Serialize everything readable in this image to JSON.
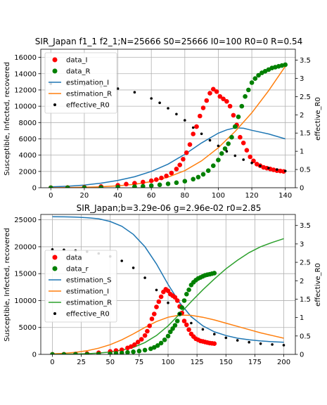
{
  "chart_data": [
    {
      "type": "line",
      "title": "SIR_Japan f1_1 f2_1;N=25666 S0=25666 I0=100 R0=0 R=0.54",
      "ylabel": "Susceptible, Infected, recovered",
      "y2label": "effective_R0",
      "xlim": [
        -6,
        146
      ],
      "ylim": [
        0,
        17000
      ],
      "y2lim": [
        0,
        3.8
      ],
      "xticks": [
        0,
        20,
        40,
        60,
        80,
        100,
        120,
        140
      ],
      "yticks": [
        0,
        2000,
        4000,
        6000,
        8000,
        10000,
        12000,
        14000,
        16000
      ],
      "y2ticks": [
        0.0,
        0.5,
        1.0,
        1.5,
        2.0,
        2.5,
        3.0,
        3.5
      ],
      "grid": true,
      "legend_position": "top-left",
      "legend": [
        "data_I",
        "data_R",
        "estimation_I",
        "estimation_R",
        "effective_R0"
      ],
      "series": [
        {
          "name": "data_I",
          "kind": "scatter",
          "color": "#ff0000",
          "axis": "left",
          "x": [
            0,
            10,
            20,
            30,
            40,
            45,
            50,
            55,
            60,
            63,
            66,
            69,
            72,
            75,
            77,
            79,
            81,
            83,
            85,
            87,
            89,
            91,
            93,
            95,
            97,
            99,
            101,
            103,
            105,
            107,
            109,
            111,
            113,
            115,
            117,
            119,
            121,
            123,
            125,
            127,
            129,
            131,
            133,
            135,
            137,
            139
          ],
          "y": [
            10,
            30,
            60,
            150,
            300,
            450,
            550,
            700,
            850,
            1000,
            1200,
            1450,
            1800,
            2300,
            2800,
            3500,
            4300,
            5300,
            6600,
            7500,
            8800,
            9800,
            10700,
            11600,
            12100,
            11800,
            11200,
            10900,
            10600,
            10000,
            8900,
            7700,
            6200,
            5500,
            4600,
            3800,
            3300,
            2900,
            2700,
            2500,
            2400,
            2300,
            2200,
            2100,
            2050,
            2000
          ]
        },
        {
          "name": "data_R",
          "kind": "scatter",
          "color": "#008000",
          "axis": "left",
          "x": [
            0,
            10,
            20,
            30,
            40,
            50,
            55,
            60,
            65,
            70,
            75,
            80,
            85,
            88,
            91,
            94,
            97,
            100,
            102,
            104,
            106,
            108,
            110,
            112,
            114,
            116,
            118,
            120,
            122,
            124,
            126,
            128,
            130,
            132,
            134,
            136,
            138,
            140
          ],
          "y": [
            0,
            5,
            15,
            30,
            60,
            120,
            180,
            260,
            360,
            480,
            620,
            800,
            1050,
            1300,
            1650,
            2100,
            2700,
            3400,
            4200,
            4800,
            5400,
            6200,
            7500,
            8700,
            10000,
            11200,
            12000,
            12900,
            13400,
            13800,
            14100,
            14300,
            14500,
            14700,
            14800,
            14900,
            15000,
            15100
          ]
        },
        {
          "name": "estimation_I",
          "kind": "line",
          "color": "#1f77b4",
          "axis": "left",
          "x": [
            0,
            10,
            20,
            30,
            40,
            50,
            60,
            70,
            80,
            90,
            100,
            105,
            110,
            115,
            120,
            130,
            140
          ],
          "y": [
            100,
            180,
            330,
            560,
            900,
            1350,
            2000,
            2900,
            4100,
            5500,
            6700,
            7100,
            7350,
            7300,
            7050,
            6600,
            6000
          ]
        },
        {
          "name": "estimation_R",
          "kind": "line",
          "color": "#ff7f0e",
          "axis": "left",
          "x": [
            0,
            10,
            20,
            30,
            40,
            50,
            60,
            70,
            80,
            90,
            100,
            110,
            120,
            130,
            140
          ],
          "y": [
            0,
            20,
            60,
            120,
            230,
            420,
            750,
            1300,
            2100,
            3300,
            4900,
            6900,
            9200,
            11900,
            14900
          ]
        },
        {
          "name": "effective_R0",
          "kind": "scatter",
          "color": "#000000",
          "axis": "right",
          "x": [
            0,
            10,
            20,
            30,
            40,
            50,
            60,
            65,
            70,
            75,
            80,
            85,
            90,
            95,
            100,
            105,
            110,
            115,
            120,
            125,
            130,
            135,
            140
          ],
          "y": [
            2.85,
            2.84,
            2.82,
            2.78,
            2.72,
            2.62,
            2.45,
            2.33,
            2.18,
            2.02,
            1.85,
            1.65,
            1.48,
            1.3,
            1.15,
            1.0,
            0.88,
            0.77,
            0.68,
            0.6,
            0.54,
            0.5,
            0.46
          ]
        }
      ]
    },
    {
      "type": "line",
      "title": "SIR_Japan;b=3.29e-06 g=2.96e-02 r0=2.85",
      "ylabel": "Susceptible, Infected, recovered",
      "y2label": "effective_R0",
      "xlim": [
        -10,
        210
      ],
      "ylim": [
        0,
        26000
      ],
      "y2lim": [
        0,
        3.8
      ],
      "xticks": [
        0,
        25,
        50,
        75,
        100,
        125,
        150,
        175,
        200
      ],
      "yticks": [
        0,
        5000,
        10000,
        15000,
        20000,
        25000
      ],
      "y2ticks": [
        0.0,
        0.5,
        1.0,
        1.5,
        2.0,
        2.5,
        3.0,
        3.5
      ],
      "grid": true,
      "legend_position": "center-left",
      "legend": [
        "data",
        "data_r",
        "estimation_S",
        "estimation_I",
        "estimation_R",
        "effective_R0"
      ],
      "series": [
        {
          "name": "data",
          "kind": "scatter",
          "color": "#ff0000",
          "axis": "left",
          "x": [
            0,
            10,
            20,
            30,
            40,
            50,
            55,
            60,
            65,
            68,
            71,
            74,
            77,
            80,
            82,
            84,
            86,
            88,
            90,
            92,
            94,
            96,
            98,
            100,
            102,
            104,
            106,
            108,
            110,
            112,
            114,
            116,
            118,
            120,
            122,
            124,
            126,
            128,
            130,
            132,
            134,
            136,
            138,
            140
          ],
          "y": [
            10,
            30,
            60,
            150,
            300,
            550,
            700,
            850,
            1200,
            1450,
            1800,
            2300,
            2800,
            3500,
            4300,
            5300,
            6600,
            7500,
            8800,
            9800,
            10700,
            11600,
            12100,
            11800,
            11200,
            10900,
            10600,
            10000,
            8900,
            7700,
            6200,
            5500,
            4600,
            3800,
            3300,
            2900,
            2700,
            2500,
            2400,
            2300,
            2200,
            2100,
            2050,
            2000
          ]
        },
        {
          "name": "data_r",
          "kind": "scatter",
          "color": "#008000",
          "axis": "left",
          "x": [
            0,
            10,
            20,
            30,
            40,
            50,
            55,
            60,
            65,
            70,
            75,
            80,
            85,
            88,
            91,
            94,
            97,
            100,
            102,
            104,
            106,
            108,
            110,
            112,
            114,
            116,
            118,
            120,
            122,
            124,
            126,
            128,
            130,
            132,
            134,
            136,
            138,
            140
          ],
          "y": [
            0,
            5,
            15,
            30,
            60,
            120,
            180,
            260,
            360,
            480,
            620,
            800,
            1050,
            1300,
            1650,
            2100,
            2700,
            3400,
            4200,
            4800,
            5400,
            6200,
            7500,
            8700,
            10000,
            11200,
            12000,
            12900,
            13400,
            13800,
            14100,
            14300,
            14500,
            14700,
            14800,
            14900,
            15000,
            15100
          ]
        },
        {
          "name": "estimation_S",
          "kind": "line",
          "color": "#1f77b4",
          "axis": "left",
          "x": [
            0,
            10,
            20,
            30,
            40,
            50,
            60,
            70,
            80,
            90,
            100,
            110,
            120,
            130,
            140,
            150,
            160,
            170,
            180,
            190,
            200
          ],
          "y": [
            25566,
            25550,
            25500,
            25400,
            25200,
            24700,
            23800,
            22300,
            20000,
            16800,
            13000,
            9600,
            7000,
            5300,
            4200,
            3500,
            3000,
            2700,
            2500,
            2350,
            2250
          ]
        },
        {
          "name": "estimation_I",
          "kind": "line",
          "color": "#ff7f0e",
          "axis": "left",
          "x": [
            0,
            10,
            20,
            30,
            40,
            50,
            60,
            70,
            80,
            90,
            100,
            110,
            120,
            130,
            140,
            150,
            160,
            170,
            180,
            190,
            200
          ],
          "y": [
            100,
            200,
            380,
            680,
            1150,
            1800,
            2700,
            3800,
            5000,
            6100,
            6900,
            7300,
            7250,
            6900,
            6400,
            5800,
            5200,
            4600,
            4000,
            3500,
            3000
          ]
        },
        {
          "name": "estimation_R",
          "kind": "line",
          "color": "#2ca02c",
          "axis": "left",
          "x": [
            0,
            10,
            20,
            30,
            40,
            50,
            60,
            70,
            80,
            90,
            100,
            110,
            120,
            130,
            140,
            150,
            160,
            170,
            180,
            190,
            200
          ],
          "y": [
            0,
            20,
            60,
            130,
            250,
            450,
            800,
            1300,
            2200,
            3500,
            5300,
            7500,
            9800,
            12000,
            14000,
            15900,
            17500,
            18900,
            20000,
            20800,
            21500
          ]
        },
        {
          "name": "effective_R0",
          "kind": "scatter",
          "color": "#000000",
          "axis": "right",
          "x": [
            0,
            10,
            20,
            30,
            40,
            50,
            60,
            70,
            80,
            90,
            100,
            110,
            120,
            130,
            140,
            150,
            160,
            170,
            180,
            190,
            200
          ],
          "y": [
            2.85,
            2.84,
            2.82,
            2.79,
            2.74,
            2.66,
            2.54,
            2.35,
            2.08,
            1.75,
            1.4,
            1.1,
            0.85,
            0.68,
            0.55,
            0.45,
            0.38,
            0.33,
            0.29,
            0.27,
            0.25
          ]
        }
      ]
    }
  ]
}
